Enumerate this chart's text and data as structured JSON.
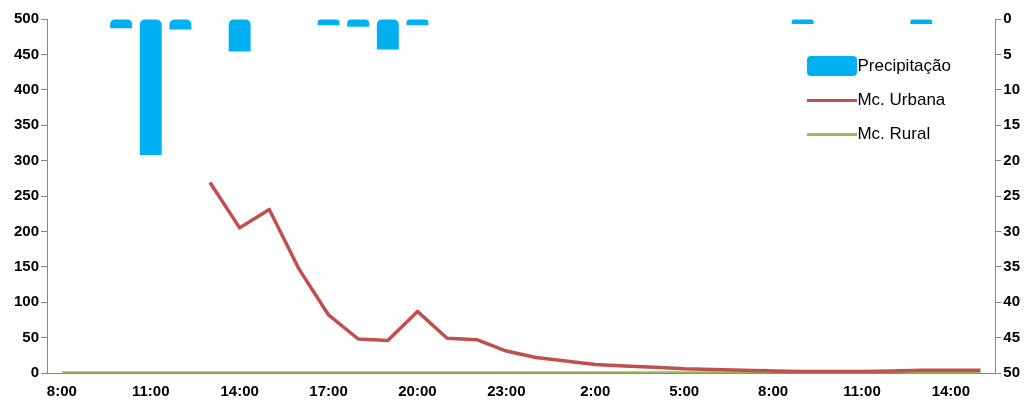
{
  "chart_data": {
    "type": "line",
    "categories": [
      "8:00",
      null,
      null,
      "11:00",
      null,
      null,
      "14:00",
      null,
      null,
      "17:00",
      null,
      null,
      "20:00",
      null,
      null,
      "23:00",
      null,
      null,
      "2:00",
      null,
      null,
      "5:00",
      null,
      null,
      "8:00",
      null,
      null,
      "11:00",
      null,
      null,
      "14:00",
      null
    ],
    "series": [
      {
        "name": "Precipitação",
        "type": "bar",
        "axis": "y2",
        "color": "#00b0f0",
        "values": [
          null,
          null,
          1.3,
          19.2,
          1.5,
          null,
          4.6,
          null,
          null,
          0.9,
          1.1,
          4.3,
          0.9,
          null,
          null,
          null,
          null,
          null,
          null,
          null,
          null,
          null,
          null,
          null,
          null,
          0.7,
          null,
          null,
          null,
          0.7,
          null,
          null
        ]
      },
      {
        "name": "Mc. Urbana",
        "color": "#c0504d",
        "values": [
          null,
          null,
          null,
          null,
          null,
          269,
          205,
          231,
          147,
          82,
          48,
          46,
          87,
          49,
          47,
          31,
          22,
          17,
          12,
          10,
          8,
          6,
          5,
          4,
          3,
          2,
          2,
          2,
          3,
          4,
          4,
          4
        ]
      },
      {
        "name": "Mc. Rural",
        "color": "#9bbb59",
        "values": [
          0,
          0,
          0,
          0,
          0,
          0,
          0,
          0,
          0,
          0,
          0,
          0,
          0,
          0,
          0,
          0,
          0,
          0,
          0,
          0,
          0,
          0,
          0,
          0,
          0,
          0,
          0,
          0,
          0,
          0,
          0,
          0
        ]
      }
    ],
    "ylim": [
      0,
      500
    ],
    "yticks": [
      0,
      50,
      100,
      150,
      200,
      250,
      300,
      350,
      400,
      450,
      500
    ],
    "y2lim": [
      50,
      0
    ],
    "y2ticks": [
      0,
      5,
      10,
      15,
      20,
      25,
      30,
      35,
      40,
      45,
      50
    ],
    "legend": "top right",
    "grid": false,
    "marker": "none"
  }
}
